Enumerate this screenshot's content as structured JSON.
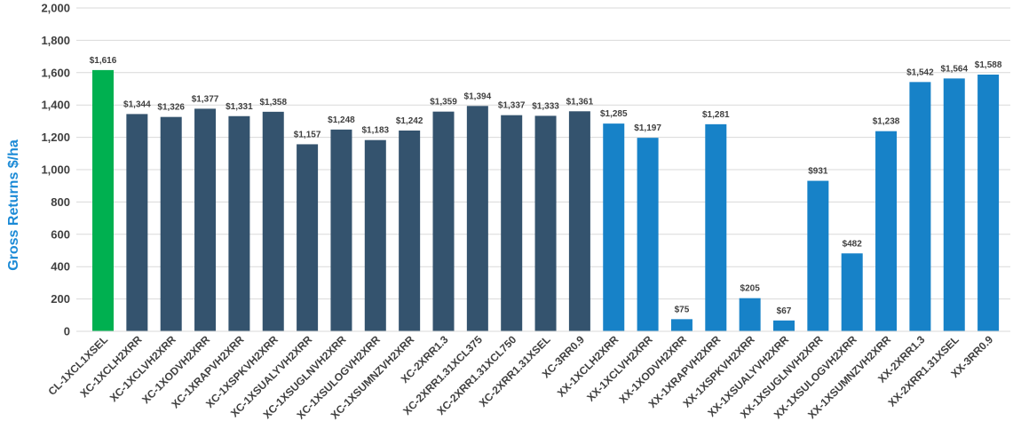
{
  "chart_data": {
    "type": "bar",
    "title": "",
    "xlabel": "",
    "ylabel": "Gross Returns $/ha",
    "ylim": [
      0,
      2000
    ],
    "yticks": [
      0,
      200,
      400,
      600,
      800,
      1000,
      1200,
      1400,
      1600,
      1800,
      2000
    ],
    "ytick_labels": [
      "0",
      "200",
      "400",
      "600",
      "800",
      "1,000",
      "1,200",
      "1,400",
      "1,600",
      "1,800",
      "2,000"
    ],
    "grid": true,
    "legend": "none",
    "categories": [
      "CL-1XCL1XSEL",
      "XC-1XCLH2XRR",
      "XC-1XCLVH2XRR",
      "XC-1XODVH2XRR",
      "XC-1XRAPVH2XRR",
      "XC-1XSPKVH2XRR",
      "XC-1XSUALYVH2XRR",
      "XC-1XSUGLNVH2XRR",
      "XC-1XSULOGVH2XRR",
      "XC-1XSUMNZVH2XRR",
      "XC-2XRR1.3",
      "XC-2XRR1.31XCL375",
      "XC-2XRR1.31XCL750",
      "XC-2XRR1.31XSEL",
      "XC-3RR0.9",
      "XX-1XCLH2XRR",
      "XX-1XCLVH2XRR",
      "XX-1XODVH2XRR",
      "XX-1XRAPVH2XRR",
      "XX-1XSPKVH2XRR",
      "XX-1XSUALYVH2XRR",
      "XX-1XSUGLNVH2XRR",
      "XX-1XSULOGVH2XRR",
      "XX-1XSUMNZVH2XRR",
      "XX-2XRR1.3",
      "XX-2XRR1.31XSEL",
      "XX-3RR0.9"
    ],
    "values": [
      1616,
      1344,
      1326,
      1377,
      1331,
      1358,
      1157,
      1248,
      1183,
      1242,
      1359,
      1394,
      1337,
      1333,
      1361,
      1285,
      1197,
      75,
      1281,
      205,
      67,
      931,
      482,
      1238,
      1542,
      1564,
      1588
    ],
    "data_labels": [
      "$1,616",
      "$1,344",
      "$1,326",
      "$1,377",
      "$1,331",
      "$1,358",
      "$1,157",
      "$1,248",
      "$1,183",
      "$1,242",
      "$1,359",
      "$1,394",
      "$1,337",
      "$1,333",
      "$1,361",
      "$1,285",
      "$1,197",
      "$75",
      "$1,281",
      "$205",
      "$67",
      "$931",
      "$482",
      "$1,238",
      "$1,542",
      "$1,564",
      "$1,588"
    ],
    "bar_colors": [
      "#00b050",
      "#34536e",
      "#34536e",
      "#34536e",
      "#34536e",
      "#34536e",
      "#34536e",
      "#34536e",
      "#34536e",
      "#34536e",
      "#34536e",
      "#34536e",
      "#34536e",
      "#34536e",
      "#34536e",
      "#1782c8",
      "#1782c8",
      "#1782c8",
      "#1782c8",
      "#1782c8",
      "#1782c8",
      "#1782c8",
      "#1782c8",
      "#1782c8",
      "#1782c8",
      "#1782c8",
      "#1782c8"
    ]
  },
  "colors": {
    "axis_title": "#1b8ad6",
    "grid": "#d9d9d9",
    "text": "#404040"
  }
}
